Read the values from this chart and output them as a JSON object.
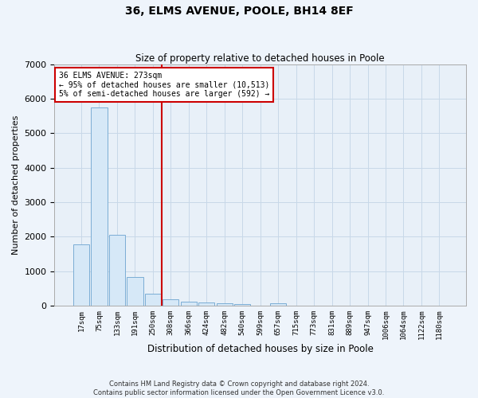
{
  "title": "36, ELMS AVENUE, POOLE, BH14 8EF",
  "subtitle": "Size of property relative to detached houses in Poole",
  "xlabel": "Distribution of detached houses by size in Poole",
  "ylabel": "Number of detached properties",
  "bar_color": "#d6e8f7",
  "bar_edge_color": "#7aadd4",
  "grid_color": "#c8d8e8",
  "background_color": "#e8f0f8",
  "vline_color": "#cc0000",
  "vline_x": 4.5,
  "annotation_text": "36 ELMS AVENUE: 273sqm\n← 95% of detached houses are smaller (10,513)\n5% of semi-detached houses are larger (592) →",
  "annotation_box_color": "#ffffff",
  "annotation_box_edge": "#cc0000",
  "categories": [
    "17sqm",
    "75sqm",
    "133sqm",
    "191sqm",
    "250sqm",
    "308sqm",
    "366sqm",
    "424sqm",
    "482sqm",
    "540sqm",
    "599sqm",
    "657sqm",
    "715sqm",
    "773sqm",
    "831sqm",
    "889sqm",
    "947sqm",
    "1006sqm",
    "1064sqm",
    "1122sqm",
    "1180sqm"
  ],
  "values": [
    1780,
    5750,
    2050,
    830,
    340,
    185,
    105,
    90,
    75,
    55,
    0,
    60,
    0,
    0,
    0,
    0,
    0,
    0,
    0,
    0,
    0
  ],
  "ylim": [
    0,
    7000
  ],
  "yticks": [
    0,
    1000,
    2000,
    3000,
    4000,
    5000,
    6000,
    7000
  ],
  "footnote": "Contains HM Land Registry data © Crown copyright and database right 2024.\nContains public sector information licensed under the Open Government Licence v3.0.",
  "fig_width": 6.0,
  "fig_height": 5.0,
  "dpi": 100
}
